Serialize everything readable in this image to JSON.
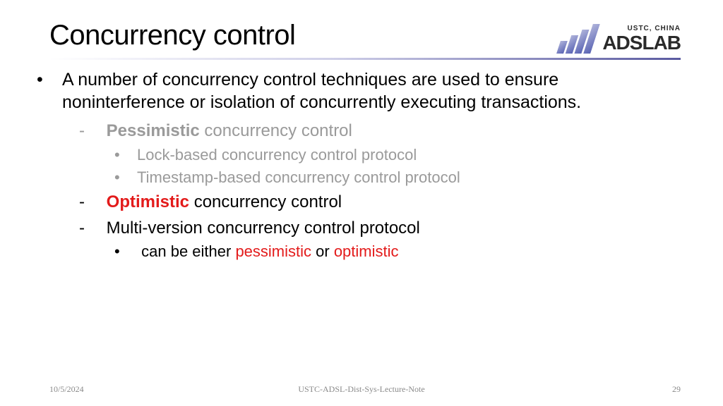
{
  "title": "Concurrency control",
  "logo": {
    "sub": "USTC, CHINA",
    "main": "ADSLAB"
  },
  "intro": "A number of concurrency control techniques are used to ensure noninterference or isolation of concurrently executing transactions.",
  "pessimistic": {
    "strong": "Pessimistic",
    "rest": " concurrency control",
    "sub1": "Lock-based concurrency control protocol",
    "sub2": "Timestamp-based concurrency control protocol"
  },
  "optimistic": {
    "strong": "Optimistic",
    "rest": " concurrency control"
  },
  "multi": {
    "label": "Multi-version concurrency control protocol",
    "sub_pre": "can be either ",
    "sub_p": "pessimistic",
    "sub_mid": " or ",
    "sub_o": "optimistic"
  },
  "footer": {
    "date": "10/5/2024",
    "center": "USTC-ADSL-Dist-Sys-Lecture-Note",
    "page": "29"
  },
  "colors": {
    "red": "#e31b1b",
    "dim": "#9a9a9a",
    "text": "#000000"
  }
}
